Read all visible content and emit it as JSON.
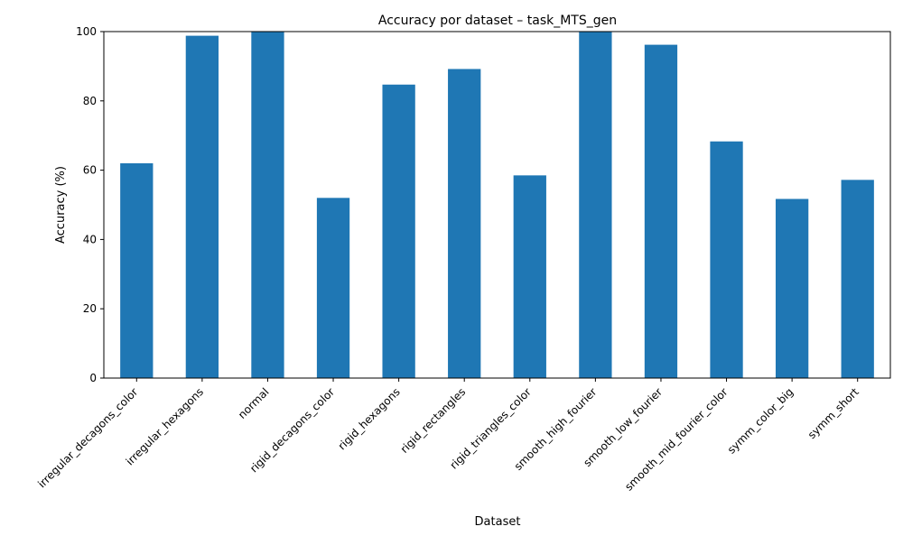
{
  "chart_data": {
    "type": "bar",
    "title": "Accuracy por dataset – task_MTS_gen",
    "xlabel": "Dataset",
    "ylabel": "Accuracy (%)",
    "ylim": [
      0,
      100
    ],
    "yticks": [
      0,
      20,
      40,
      60,
      80,
      100
    ],
    "grid": false,
    "legend": "none",
    "bar_color": "#1f77b4",
    "categories": [
      "irregular_decagons_color",
      "irregular_hexagons",
      "normal",
      "rigid_decagons_color",
      "rigid_hexagons",
      "rigid_rectangles",
      "rigid_triangles_color",
      "smooth_high_fourier",
      "smooth_low_fourier",
      "smooth_mid_fourier_color",
      "symm_color_big",
      "symm_short"
    ],
    "values": [
      62.0,
      98.8,
      100.0,
      52.0,
      84.7,
      89.2,
      58.5,
      100.0,
      96.2,
      68.3,
      51.7,
      57.2
    ]
  }
}
